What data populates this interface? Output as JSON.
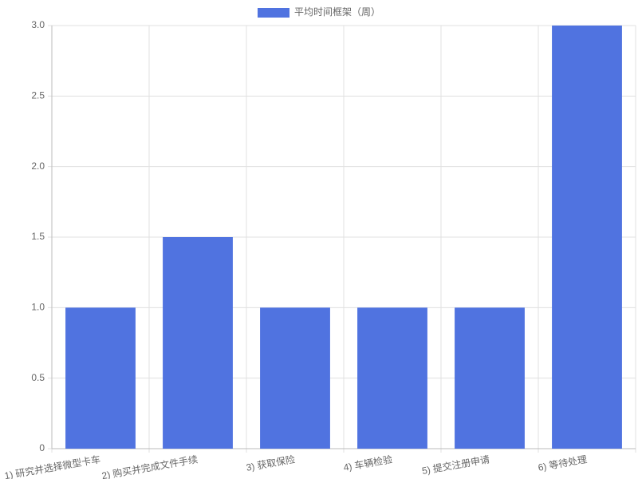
{
  "chart_data": {
    "type": "bar",
    "categories": [
      "1) 研究并选择微型卡车",
      "2) 购买并完成文件手续",
      "3) 获取保险",
      "4) 车辆检验",
      "5) 提交注册申请",
      "6) 等待处理"
    ],
    "series": [
      {
        "name": "平均时间框架（周）",
        "color": "#5073e0",
        "values": [
          1,
          1.5,
          1,
          1,
          1,
          3
        ]
      }
    ],
    "ylim": [
      0,
      3
    ],
    "yticks": [
      0,
      0.5,
      {
        "value": 1,
        "label": "1.0"
      },
      1.5,
      {
        "value": 2,
        "label": "2.0"
      },
      2.5,
      {
        "value": 3,
        "label": "3.0"
      }
    ],
    "grid": true,
    "legend": "top"
  }
}
